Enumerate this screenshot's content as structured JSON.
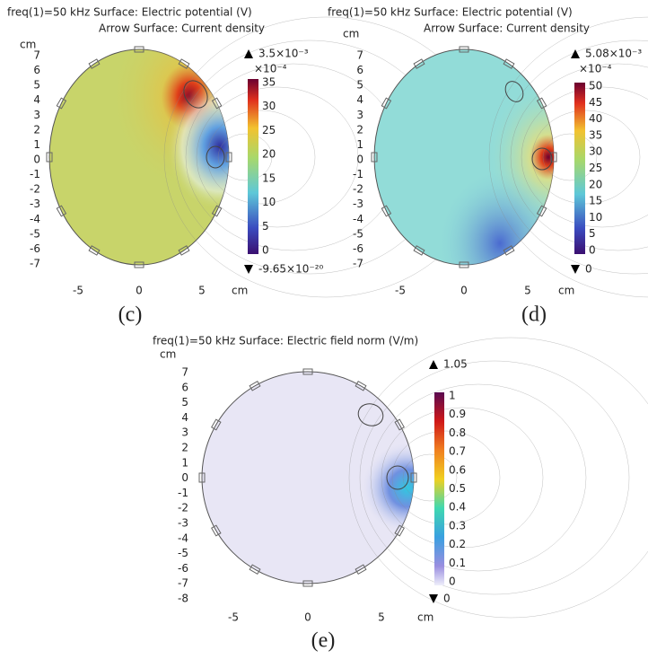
{
  "panels": [
    {
      "title": [
        "freq(1)=50 kHz   Surface: Electric potential (V)",
        "Arrow Surface: Current density"
      ],
      "y_unit": "cm",
      "yticks": [
        "7",
        "6",
        "5",
        "4",
        "3",
        "2",
        "1",
        "0",
        "-1",
        "-2",
        "-3",
        "-4",
        "-5",
        "-6",
        "-7"
      ],
      "xticks": [
        "-5",
        "0",
        "5"
      ],
      "x_unit": "cm",
      "colorbar": {
        "max": "3.5×10⁻³",
        "scale": "×10⁻⁴",
        "ticks": [
          "35",
          "30",
          "25",
          "20",
          "15",
          "10",
          "5",
          "0"
        ],
        "min": "-9.65×10⁻²⁰"
      },
      "label": "(c)"
    },
    {
      "title": [
        "freq(1)=50 kHz   Surface: Electric potential (V)",
        "Arrow Surface: Current density"
      ],
      "y_unit": "cm",
      "yticks": [
        "7",
        "6",
        "5",
        "4",
        "3",
        "2",
        "1",
        "0",
        "-1",
        "-2",
        "-3",
        "-4",
        "-5",
        "-6",
        "-7"
      ],
      "xticks": [
        "-5",
        "0",
        "5"
      ],
      "x_unit": "cm",
      "colorbar": {
        "max": "5.08×10⁻³",
        "scale": "×10⁻⁴",
        "ticks": [
          "50",
          "45",
          "40",
          "35",
          "30",
          "25",
          "20",
          "15",
          "10",
          "5",
          "0"
        ],
        "min": "0"
      },
      "label": "(d)"
    },
    {
      "title": [
        "freq(1)=50 kHz  Surface: Electric field norm (V/m)"
      ],
      "y_unit": "cm",
      "yticks": [
        "7",
        "6",
        "5",
        "4",
        "3",
        "2",
        "1",
        "0",
        "-1",
        "-2",
        "-3",
        "-4",
        "-5",
        "-6",
        "-7",
        "-8"
      ],
      "xticks": [
        "-5",
        "0",
        "5"
      ],
      "x_unit": "cm",
      "colorbar": {
        "max": "1.05",
        "ticks": [
          "1",
          "0.9",
          "0.8",
          "0.7",
          "0.6",
          "0.5",
          "0.4",
          "0.3",
          "0.2",
          "0.1",
          "0"
        ],
        "min": "0"
      },
      "label": "(e)"
    }
  ]
}
